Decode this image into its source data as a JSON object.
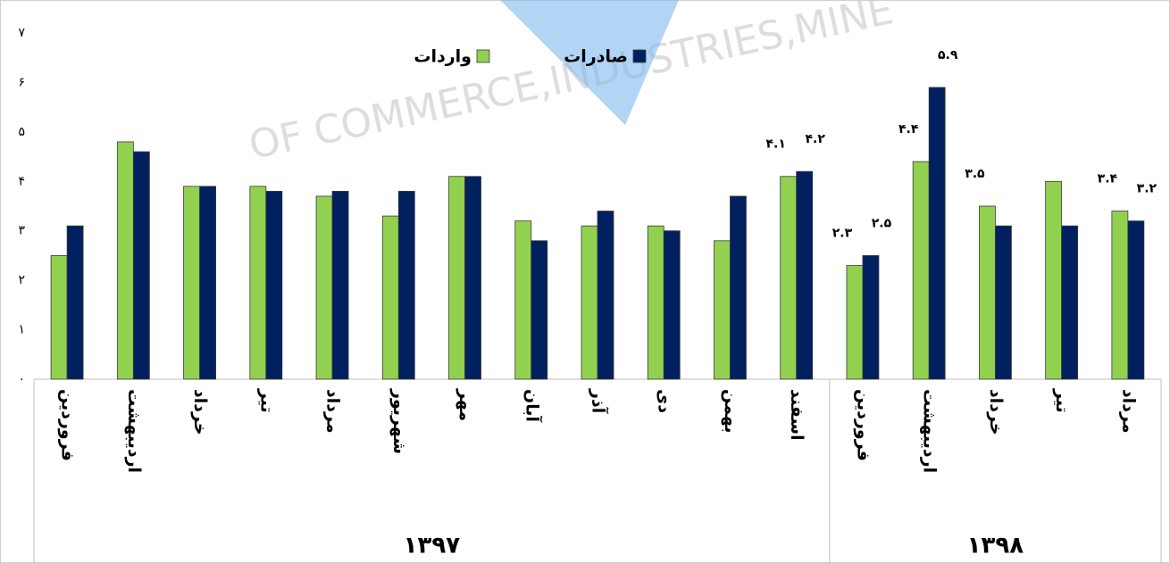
{
  "chart_data": {
    "type": "bar",
    "watermark": "OF COMMERCE,INDUSTRIES,MINE",
    "categories": [
      "فروردین",
      "اردیبهشت",
      "خرداد",
      "تیر",
      "مرداد",
      "شهریور",
      "مهر",
      "آبان",
      "آذر",
      "دی",
      "بهمن",
      "اسفند",
      "فروردین",
      "اردیبهشت",
      "خرداد",
      "تیر",
      "مرداد"
    ],
    "groups": [
      {
        "label": "۱۳۹۷",
        "count": 12
      },
      {
        "label": "۱۳۹۸",
        "count": 5
      }
    ],
    "series": [
      {
        "name": "واردات",
        "color": "#92d050",
        "values": [
          2.5,
          4.8,
          3.9,
          3.9,
          3.7,
          3.3,
          4.1,
          3.2,
          3.1,
          3.1,
          2.8,
          4.1,
          2.3,
          4.4,
          3.5,
          4.0,
          3.4
        ],
        "value_labels": [
          null,
          null,
          null,
          null,
          null,
          null,
          null,
          null,
          null,
          null,
          null,
          "۴.۱",
          "۲.۳",
          "۴.۴",
          "۳.۵",
          null,
          "۳.۴"
        ]
      },
      {
        "name": "صادرات",
        "color": "#002060",
        "values": [
          3.1,
          4.6,
          3.9,
          3.8,
          3.8,
          3.8,
          4.1,
          2.8,
          3.4,
          3.0,
          3.7,
          4.2,
          2.5,
          5.9,
          3.1,
          3.1,
          3.2
        ],
        "value_labels": [
          null,
          null,
          null,
          null,
          null,
          null,
          null,
          null,
          null,
          null,
          null,
          "۴.۲",
          "۲.۵",
          "۵.۹",
          null,
          null,
          "۳.۲"
        ]
      }
    ],
    "ylim": [
      0,
      7
    ],
    "yticks": [
      {
        "value": 0,
        "label": "۰"
      },
      {
        "value": 1,
        "label": "۱"
      },
      {
        "value": 2,
        "label": "۲"
      },
      {
        "value": 3,
        "label": "۳"
      },
      {
        "value": 4,
        "label": "۴"
      },
      {
        "value": 5,
        "label": "۵"
      },
      {
        "value": 6,
        "label": "۶"
      },
      {
        "value": 7,
        "label": "۷"
      }
    ],
    "legend": "top"
  }
}
